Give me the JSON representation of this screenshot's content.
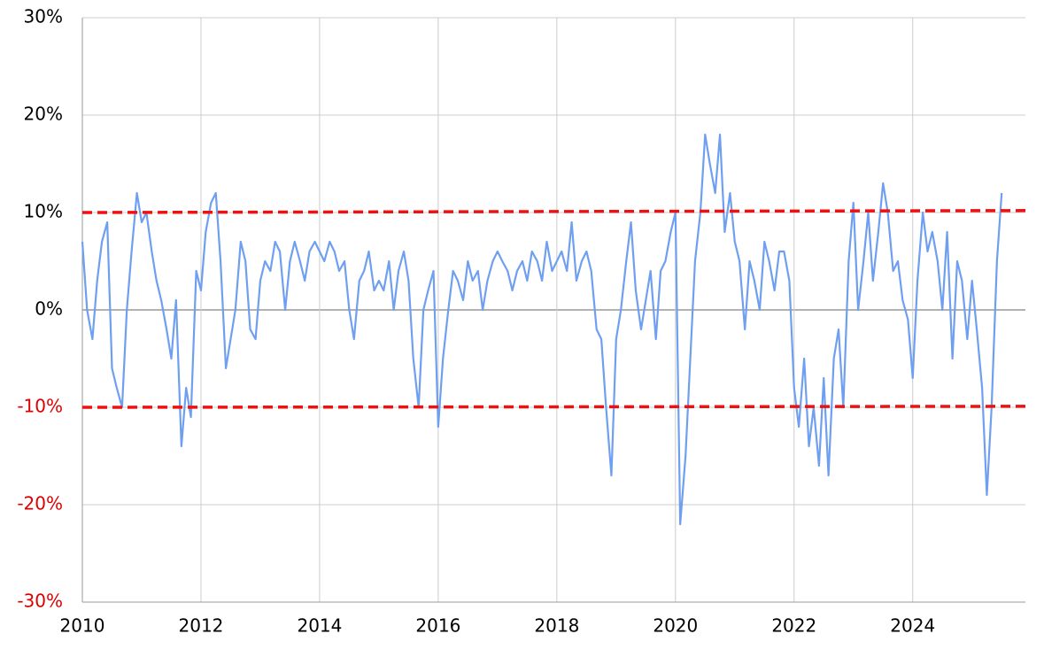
{
  "chart_data": {
    "type": "line",
    "x": [
      2010,
      2010.08,
      2010.17,
      2010.25,
      2010.33,
      2010.42,
      2010.5,
      2010.58,
      2010.67,
      2010.75,
      2010.83,
      2010.92,
      2011,
      2011.08,
      2011.17,
      2011.25,
      2011.33,
      2011.42,
      2011.5,
      2011.58,
      2011.67,
      2011.75,
      2011.83,
      2011.92,
      2012,
      2012.08,
      2012.17,
      2012.25,
      2012.33,
      2012.42,
      2012.5,
      2012.58,
      2012.67,
      2012.75,
      2012.83,
      2012.92,
      2013,
      2013.08,
      2013.17,
      2013.25,
      2013.33,
      2013.42,
      2013.5,
      2013.58,
      2013.67,
      2013.75,
      2013.83,
      2013.92,
      2014,
      2014.08,
      2014.17,
      2014.25,
      2014.33,
      2014.42,
      2014.5,
      2014.58,
      2014.67,
      2014.75,
      2014.83,
      2014.92,
      2015,
      2015.08,
      2015.17,
      2015.25,
      2015.33,
      2015.42,
      2015.5,
      2015.58,
      2015.67,
      2015.75,
      2015.83,
      2015.92,
      2016,
      2016.08,
      2016.17,
      2016.25,
      2016.33,
      2016.42,
      2016.5,
      2016.58,
      2016.67,
      2016.75,
      2016.83,
      2016.92,
      2017,
      2017.08,
      2017.17,
      2017.25,
      2017.33,
      2017.42,
      2017.5,
      2017.58,
      2017.67,
      2017.75,
      2017.83,
      2017.92,
      2018,
      2018.08,
      2018.17,
      2018.25,
      2018.33,
      2018.42,
      2018.5,
      2018.58,
      2018.67,
      2018.75,
      2018.83,
      2018.92,
      2019,
      2019.08,
      2019.17,
      2019.25,
      2019.33,
      2019.42,
      2019.5,
      2019.58,
      2019.67,
      2019.75,
      2019.83,
      2019.92,
      2020,
      2020.08,
      2020.17,
      2020.25,
      2020.33,
      2020.42,
      2020.5,
      2020.58,
      2020.67,
      2020.75,
      2020.83,
      2020.92,
      2021,
      2021.08,
      2021.17,
      2021.25,
      2021.33,
      2021.42,
      2021.5,
      2021.58,
      2021.67,
      2021.75,
      2021.83,
      2021.92,
      2022,
      2022.08,
      2022.17,
      2022.25,
      2022.33,
      2022.42,
      2022.5,
      2022.58,
      2022.67,
      2022.75,
      2022.83,
      2022.92,
      2023,
      2023.08,
      2023.17,
      2023.25,
      2023.33,
      2023.42,
      2023.5,
      2023.58,
      2023.67,
      2023.75,
      2023.83,
      2023.92,
      2024,
      2024.08,
      2024.17,
      2024.25,
      2024.33,
      2024.42,
      2024.5,
      2024.58,
      2024.67,
      2024.75,
      2024.83,
      2024.92,
      2025,
      2025.08,
      2025.17,
      2025.25,
      2025.33,
      2025.42,
      2025.5
    ],
    "series": [
      {
        "color": "#6f9ff0",
        "values": [
          7,
          0,
          -3,
          3,
          7,
          9,
          -6,
          -8,
          -10,
          0,
          6,
          12,
          9,
          10,
          6,
          3,
          1,
          -2,
          -5,
          1,
          -14,
          -8,
          -11,
          4,
          2,
          8,
          11,
          12,
          5,
          -6,
          -3,
          0,
          7,
          5,
          -2,
          -3,
          3,
          5,
          4,
          7,
          6,
          0,
          5,
          7,
          5,
          3,
          6,
          7,
          6,
          5,
          7,
          6,
          4,
          5,
          0,
          -3,
          3,
          4,
          6,
          2,
          3,
          2,
          5,
          0,
          4,
          6,
          3,
          -5,
          -10,
          0,
          2,
          4,
          -12,
          -5,
          0,
          4,
          3,
          1,
          5,
          3,
          4,
          0,
          3,
          5,
          6,
          5,
          4,
          2,
          4,
          5,
          3,
          6,
          5,
          3,
          7,
          4,
          5,
          6,
          4,
          9,
          3,
          5,
          6,
          4,
          -2,
          -3,
          -10,
          -17,
          -3,
          0,
          5,
          9,
          2,
          -2,
          1,
          4,
          -3,
          4,
          5,
          8,
          10,
          -22,
          -15,
          -5,
          5,
          10,
          18,
          15,
          12,
          18,
          8,
          12,
          7,
          5,
          -2,
          5,
          3,
          0,
          7,
          5,
          2,
          6,
          6,
          3,
          -8,
          -12,
          -5,
          -14,
          -10,
          -16,
          -7,
          -17,
          -5,
          -2,
          -10,
          5,
          11,
          0,
          5,
          10,
          3,
          8,
          13,
          10,
          4,
          5,
          1,
          -1,
          -7,
          3,
          10,
          6,
          8,
          5,
          0,
          8,
          -5,
          5,
          3,
          -3,
          3,
          -2,
          -8,
          -19,
          -10,
          5,
          12
        ]
      }
    ],
    "reference_lines": [
      {
        "color": "#ee1111",
        "x": [
          2010,
          2025.9
        ],
        "values": [
          10,
          10.2
        ]
      },
      {
        "color": "#ee1111",
        "x": [
          2010,
          2025.9
        ],
        "values": [
          -10,
          -9.9
        ]
      }
    ],
    "xlim": [
      2010,
      2025.9
    ],
    "xticks": [
      2010,
      2012,
      2014,
      2016,
      2018,
      2020,
      2022,
      2024
    ],
    "ylim": [
      -30,
      30
    ],
    "yticks": [
      {
        "value": -30,
        "label": "-30%"
      },
      {
        "value": -20,
        "label": "-20%"
      },
      {
        "value": -10,
        "label": "-10%"
      },
      {
        "value": 0,
        "label": "0%"
      },
      {
        "value": 10,
        "label": "10%"
      },
      {
        "value": 20,
        "label": "20%"
      },
      {
        "value": 30,
        "label": "30%"
      }
    ],
    "negative_tick_color": "#dd0000",
    "grid": true
  }
}
